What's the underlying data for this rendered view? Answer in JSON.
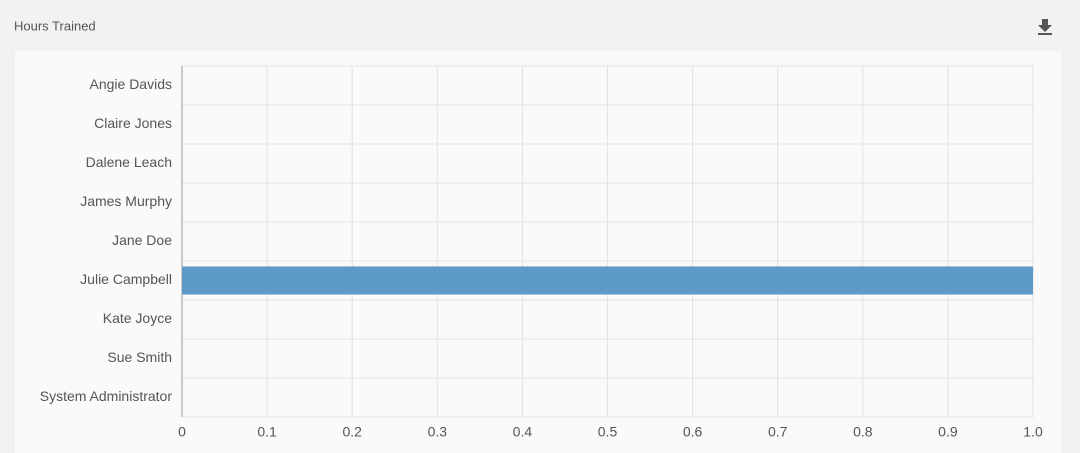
{
  "chart_data": {
    "type": "bar",
    "orientation": "horizontal",
    "title": "Hours Trained",
    "categories": [
      "Angie Davids",
      "Claire Jones",
      "Dalene Leach",
      "James Murphy",
      "Jane Doe",
      "Julie Campbell",
      "Kate Joyce",
      "Sue Smith",
      "System Administrator"
    ],
    "values": [
      0,
      0,
      0,
      0,
      0,
      1,
      0,
      0,
      0
    ],
    "color": "#5e9ac8",
    "xlim": [
      0,
      1
    ],
    "xticks": [
      0,
      0.1,
      0.2,
      0.3,
      0.4,
      0.5,
      0.6,
      0.7,
      0.8,
      0.9,
      {
        "value": 1,
        "label": "1.0"
      }
    ],
    "grid": true
  }
}
